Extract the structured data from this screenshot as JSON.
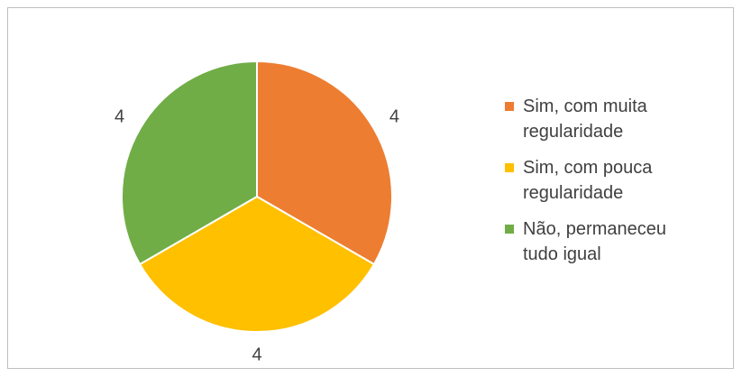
{
  "chart_data": {
    "type": "pie",
    "categories": [
      "Sim, com muita regularidade",
      "Sim, com pouca regularidade",
      "Não, permaneceu tudo igual"
    ],
    "values": [
      4,
      4,
      4
    ],
    "colors": [
      "#ED7D31",
      "#FFC000",
      "#70AD47"
    ],
    "legend": "right"
  }
}
